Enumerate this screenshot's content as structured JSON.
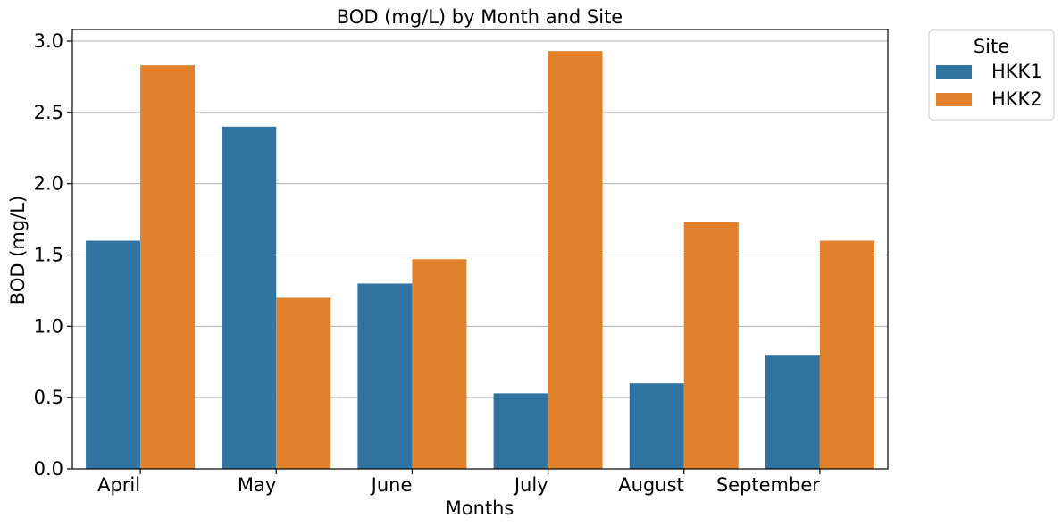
{
  "chart_data": {
    "type": "bar",
    "title": "BOD (mg/L) by Month and Site",
    "xlabel": "Months",
    "ylabel": "BOD (mg/L)",
    "categories": [
      "April",
      "May",
      "June",
      "July",
      "August",
      "September"
    ],
    "series": [
      {
        "name": "HKK1",
        "color": "#3274a1",
        "values": [
          1.6,
          2.4,
          1.3,
          0.53,
          0.6,
          0.8
        ]
      },
      {
        "name": "HKK2",
        "color": "#e1812c",
        "values": [
          2.83,
          1.2,
          1.47,
          2.93,
          1.73,
          1.6
        ]
      }
    ],
    "ylim": [
      0,
      3.0
    ],
    "yticks": [
      0.0,
      0.5,
      1.0,
      1.5,
      2.0,
      2.5,
      3.0
    ],
    "ytick_labels": [
      "0.0",
      "0.5",
      "1.0",
      "1.5",
      "2.0",
      "2.5",
      "3.0"
    ],
    "grid": "y",
    "legend": {
      "title": "Site",
      "placement": "outside-top-right"
    }
  }
}
